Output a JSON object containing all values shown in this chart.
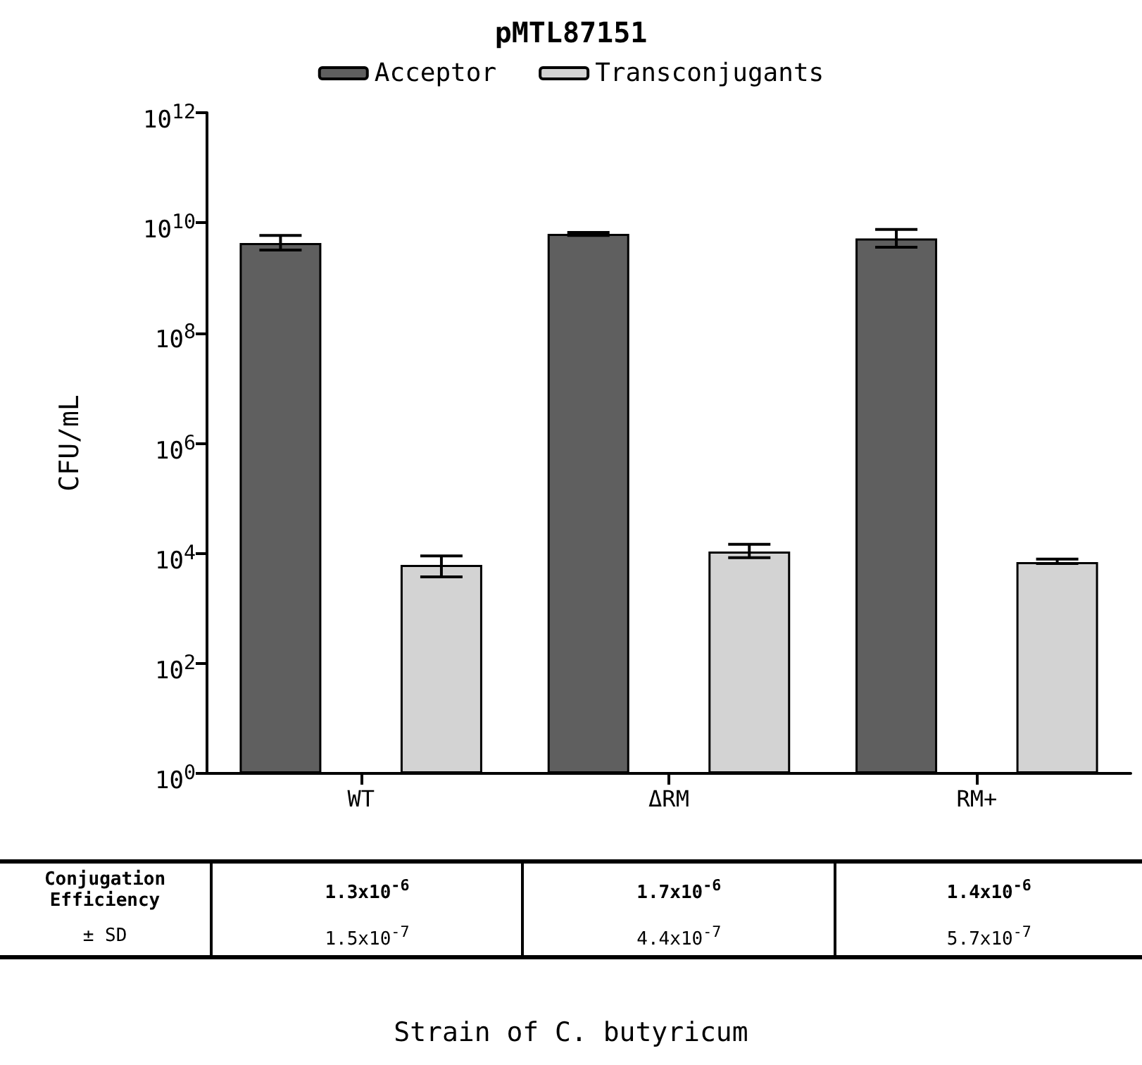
{
  "chart_data": {
    "type": "bar",
    "title": "pMTL87151",
    "categories": [
      "WT",
      "ΔRM",
      "RM+"
    ],
    "series": [
      {
        "name": "Acceptor",
        "color": "#5f5f5f",
        "values": [
          4300000000,
          6300000000,
          5200000000
        ],
        "errors": [
          [
            3200000000,
            5900000000
          ],
          [
            5900000000,
            6700000000
          ],
          [
            3600000000,
            7600000000
          ]
        ]
      },
      {
        "name": "Transconjugants",
        "color": "#d3d3d3",
        "values": [
          6100,
          10700,
          6900
        ],
        "errors": [
          [
            3700,
            8900
          ],
          [
            8300,
            14500
          ],
          [
            6500,
            7800
          ]
        ]
      }
    ],
    "ylabel": "CFU/mL",
    "log": "y",
    "ylim": [
      1,
      1000000000000
    ],
    "yticks": [
      {
        "value": 1,
        "label": "10$^{0}$"
      },
      {
        "value": 100,
        "label": "10$^{2}$"
      },
      {
        "value": 10000,
        "label": "10$^{4}$"
      },
      {
        "value": 1000000,
        "label": "10$^{6}$"
      },
      {
        "value": 100000000,
        "label": "10$^{8}$"
      },
      {
        "value": 10000000000,
        "label": "10$^{10}$"
      },
      {
        "value": 1000000000000,
        "label": "10$^{12}$"
      }
    ],
    "legend": "top",
    "grid": false,
    "annotations": [
      "Conjugation Efficiency",
      "± SD",
      "1.3x10$^{-6}$",
      "1.7x10$^{-6}$",
      "1.4x10$^{-6}$",
      "1.5x10$^{-7}$",
      "4.4x10$^{-7}$",
      "5.7x10$^{-7}$",
      "Strain of C. butyricum"
    ]
  }
}
